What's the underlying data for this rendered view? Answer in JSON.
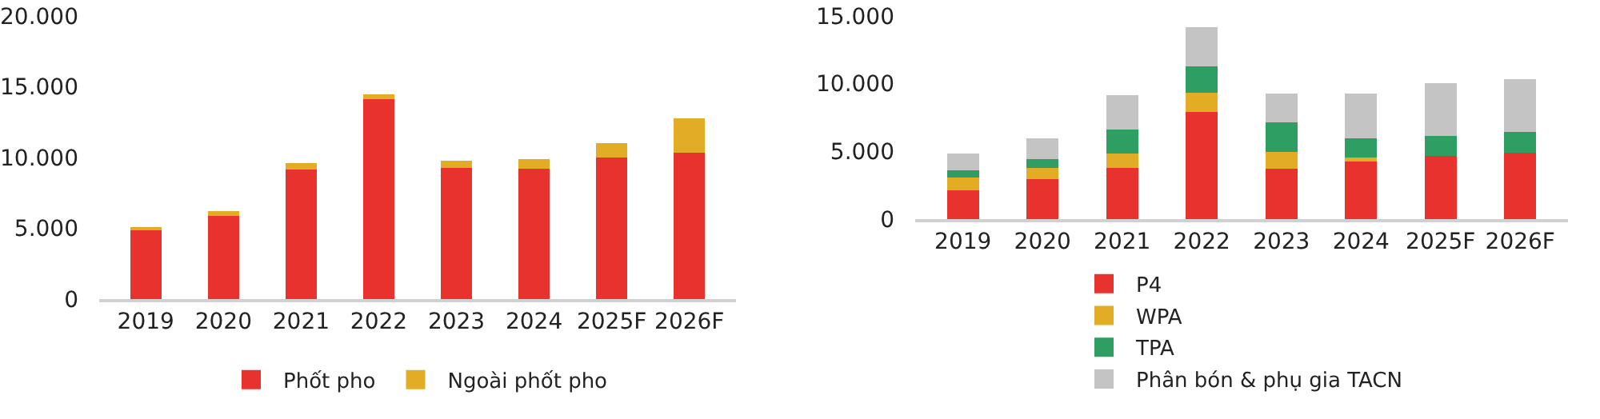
{
  "chart_data": [
    {
      "type": "bar",
      "stacked": true,
      "categories": [
        "2019",
        "2020",
        "2021",
        "2022",
        "2023",
        "2024",
        "2025F",
        "2026F"
      ],
      "series": [
        {
          "name": "Phốt pho",
          "color": "#e8322d",
          "values": [
            4850,
            5900,
            9140,
            14100,
            9290,
            9220,
            10000,
            10340
          ]
        },
        {
          "name": "Ngoài phốt pho",
          "color": "#e2ac24",
          "values": [
            230,
            290,
            450,
            340,
            490,
            670,
            1040,
            2420
          ]
        }
      ],
      "ylim": [
        0,
        20000
      ],
      "yticks": [
        0,
        {
          "value": 5000,
          "label": "5.000"
        },
        {
          "value": 10000,
          "label": "10.000"
        },
        {
          "value": 15000,
          "label": "15.000"
        },
        {
          "value": 20000,
          "label": "20.000"
        }
      ],
      "grid": false,
      "legend": "bottom"
    },
    {
      "type": "bar",
      "stacked": true,
      "categories": [
        "2019",
        "2020",
        "2021",
        "2022",
        "2023",
        "2024",
        "2025F",
        "2026F"
      ],
      "series": [
        {
          "name": "P4",
          "color": "#e8322d",
          "values": [
            2120,
            2940,
            3800,
            7940,
            3700,
            4270,
            4650,
            4900
          ]
        },
        {
          "name": "WPA",
          "color": "#e2ac24",
          "values": [
            950,
            860,
            1070,
            1400,
            1270,
            290,
            0,
            0
          ]
        },
        {
          "name": "TPA",
          "color": "#2f9e62",
          "values": [
            540,
            630,
            1740,
            1930,
            2150,
            1420,
            1520,
            1520
          ]
        },
        {
          "name": "Phân bón & phụ gia TACN",
          "color": "#c4c4c4",
          "values": [
            1260,
            1520,
            2540,
            2880,
            2150,
            3290,
            3860,
            3930
          ]
        }
      ],
      "ylim": [
        0,
        15000
      ],
      "yticks": [
        0,
        {
          "value": 5000,
          "label": "5.000"
        },
        {
          "value": 10000,
          "label": "10.000"
        },
        {
          "value": 15000,
          "label": "15.000"
        }
      ],
      "grid": false,
      "legend": "bottom"
    }
  ]
}
